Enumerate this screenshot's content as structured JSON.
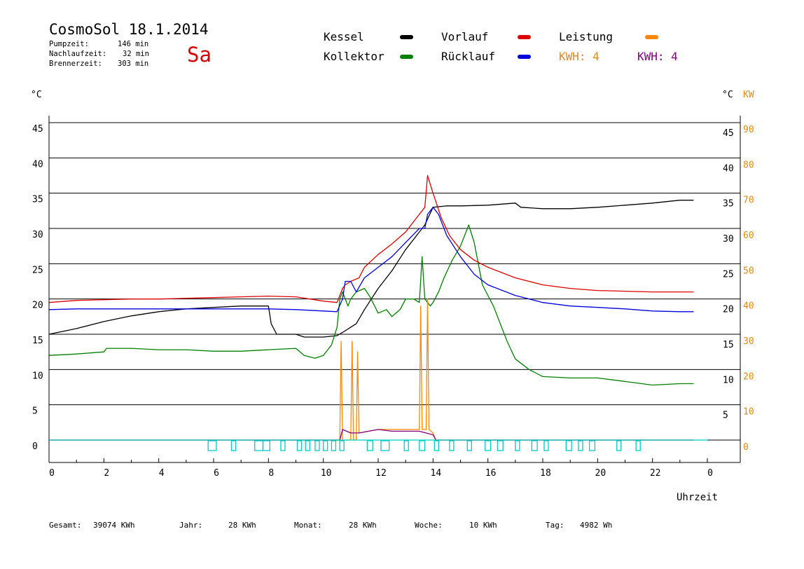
{
  "header": {
    "title": "CosmoSol 18.1.2014",
    "day": "Sa",
    "pumpzeit_label": "Pumpzeit:",
    "pumpzeit_value": "146 min",
    "nachlauf_label": "Nachlaufzeit:",
    "nachlauf_value": "32 min",
    "brenner_label": "Brennerzeit:",
    "brenner_value": "303 min"
  },
  "legend": {
    "kessel": "Kessel",
    "kollektor": "Kollektor",
    "vorlauf": "Vorlauf",
    "ruecklauf": "Rücklauf",
    "leistung": "Leistung",
    "kwh1": "KWH: 4",
    "kwh2": "KWH: 4"
  },
  "axes": {
    "left_unit": "°C",
    "right_unit_c": "°C",
    "right_unit_kw": "KW",
    "x_unit": "Uhrzeit"
  },
  "totals": [
    {
      "label": "Gesamt:",
      "value": "39074 KWh"
    },
    {
      "label": "Jahr:",
      "value": "28 KWh"
    },
    {
      "label": "Monat:",
      "value": "28 KWh"
    },
    {
      "label": "Woche:",
      "value": "10 KWh"
    },
    {
      "label": "Tag:",
      "value": "4982 Wh"
    }
  ],
  "colors": {
    "kessel": "#000000",
    "kollektor": "#008000",
    "vorlauf": "#dd0000",
    "ruecklauf": "#0000dd",
    "leistung": "#ff8800",
    "kwh2": "#800080",
    "pump": "#00cccc",
    "kw_axis": "#e08a1e"
  },
  "chart_data": {
    "type": "line",
    "x_unit": "Uhrzeit",
    "xlim": [
      0,
      24
    ],
    "ylim": [
      0,
      45
    ],
    "y2lim": [
      0,
      90
    ],
    "grid": true,
    "x_ticks": [
      "0",
      "2",
      "4",
      "6",
      "8",
      "10",
      "12",
      "14",
      "16",
      "18",
      "20",
      "22",
      "0"
    ],
    "y_ticks": [
      "0",
      "5",
      "10",
      "15",
      "20",
      "25",
      "30",
      "35",
      "40",
      "45"
    ],
    "y_ticks_right": [
      "5",
      "10",
      "15",
      "20",
      "25",
      "30",
      "35",
      "40",
      "45"
    ],
    "y2_ticks": [
      "0",
      "10",
      "20",
      "30",
      "40",
      "50",
      "60",
      "70",
      "80",
      "90"
    ],
    "series": [
      {
        "name": "Kessel",
        "color": "#000000",
        "points": [
          [
            0,
            15
          ],
          [
            1,
            15.8
          ],
          [
            2,
            16.8
          ],
          [
            3,
            17.6
          ],
          [
            4,
            18.2
          ],
          [
            5,
            18.6
          ],
          [
            6,
            18.8
          ],
          [
            7,
            19
          ],
          [
            8,
            19
          ],
          [
            8.1,
            16.5
          ],
          [
            8.3,
            15
          ],
          [
            9,
            15
          ],
          [
            9.3,
            14.6
          ],
          [
            10,
            14.6
          ],
          [
            10.5,
            14.8
          ],
          [
            10.8,
            15.5
          ],
          [
            11,
            16
          ],
          [
            11.2,
            16.5
          ],
          [
            11.5,
            18.5
          ],
          [
            12,
            21.5
          ],
          [
            12.5,
            24
          ],
          [
            13,
            27
          ],
          [
            13.5,
            29.5
          ],
          [
            13.7,
            30.5
          ],
          [
            14,
            33
          ],
          [
            14.5,
            33.2
          ],
          [
            15,
            33.2
          ],
          [
            16,
            33.3
          ],
          [
            17,
            33.6
          ],
          [
            17.2,
            33
          ],
          [
            18,
            32.8
          ],
          [
            19,
            32.8
          ],
          [
            20,
            33
          ],
          [
            21,
            33.3
          ],
          [
            22,
            33.6
          ],
          [
            23,
            34
          ],
          [
            23.5,
            34
          ]
        ]
      },
      {
        "name": "Kollektor",
        "color": "#008000",
        "points": [
          [
            0,
            12
          ],
          [
            1,
            12.2
          ],
          [
            2,
            12.5
          ],
          [
            2.1,
            13
          ],
          [
            3,
            13
          ],
          [
            4,
            12.8
          ],
          [
            5,
            12.8
          ],
          [
            6,
            12.6
          ],
          [
            7,
            12.6
          ],
          [
            8,
            12.8
          ],
          [
            9,
            13
          ],
          [
            9.3,
            12
          ],
          [
            9.7,
            11.6
          ],
          [
            10,
            12
          ],
          [
            10.3,
            13.5
          ],
          [
            10.5,
            16
          ],
          [
            10.6,
            20
          ],
          [
            10.7,
            21
          ],
          [
            10.9,
            19
          ],
          [
            11,
            20
          ],
          [
            11.2,
            21
          ],
          [
            11.5,
            21.5
          ],
          [
            11.7,
            20.3
          ],
          [
            12,
            18
          ],
          [
            12.3,
            18.5
          ],
          [
            12.5,
            17.5
          ],
          [
            12.8,
            18.5
          ],
          [
            13,
            20
          ],
          [
            13.3,
            20
          ],
          [
            13.5,
            19.5
          ],
          [
            13.6,
            26
          ],
          [
            13.7,
            20
          ],
          [
            13.9,
            19
          ],
          [
            14,
            19.5
          ],
          [
            14.2,
            21
          ],
          [
            14.4,
            23
          ],
          [
            14.7,
            25.5
          ],
          [
            15,
            27.5
          ],
          [
            15.3,
            30.5
          ],
          [
            15.5,
            28
          ],
          [
            15.8,
            22
          ],
          [
            16.2,
            19
          ],
          [
            16.7,
            14
          ],
          [
            17,
            11.5
          ],
          [
            17.5,
            10
          ],
          [
            18,
            9
          ],
          [
            19,
            8.8
          ],
          [
            20,
            8.8
          ],
          [
            21,
            8.3
          ],
          [
            22,
            7.8
          ],
          [
            23,
            8
          ],
          [
            23.5,
            8
          ]
        ]
      },
      {
        "name": "Vorlauf",
        "color": "#dd0000",
        "points": [
          [
            0,
            19.5
          ],
          [
            1,
            19.8
          ],
          [
            2,
            19.9
          ],
          [
            3,
            20
          ],
          [
            4,
            20
          ],
          [
            5,
            20.1
          ],
          [
            6,
            20.2
          ],
          [
            7,
            20.3
          ],
          [
            8,
            20.4
          ],
          [
            9,
            20.3
          ],
          [
            10,
            19.7
          ],
          [
            10.5,
            19.5
          ],
          [
            10.7,
            21.5
          ],
          [
            10.8,
            22
          ],
          [
            11,
            22.5
          ],
          [
            11.3,
            23
          ],
          [
            11.5,
            24.5
          ],
          [
            12,
            26.3
          ],
          [
            12.5,
            27.8
          ],
          [
            13,
            29.5
          ],
          [
            13.4,
            31.5
          ],
          [
            13.7,
            33
          ],
          [
            13.8,
            37.5
          ],
          [
            14,
            35
          ],
          [
            14.3,
            31.5
          ],
          [
            14.6,
            29
          ],
          [
            15,
            27
          ],
          [
            15.5,
            25.5
          ],
          [
            16,
            24.5
          ],
          [
            17,
            23
          ],
          [
            18,
            22
          ],
          [
            19,
            21.5
          ],
          [
            20,
            21.2
          ],
          [
            21,
            21.1
          ],
          [
            22,
            21
          ],
          [
            23,
            21
          ],
          [
            23.5,
            21
          ]
        ]
      },
      {
        "name": "Rücklauf",
        "color": "#0000dd",
        "points": [
          [
            0,
            18.5
          ],
          [
            1,
            18.6
          ],
          [
            2,
            18.6
          ],
          [
            3,
            18.6
          ],
          [
            4,
            18.6
          ],
          [
            5,
            18.6
          ],
          [
            6,
            18.6
          ],
          [
            7,
            18.6
          ],
          [
            8,
            18.6
          ],
          [
            9,
            18.5
          ],
          [
            10,
            18.3
          ],
          [
            10.5,
            18.2
          ],
          [
            10.7,
            20
          ],
          [
            10.8,
            22.5
          ],
          [
            11,
            22.5
          ],
          [
            11.2,
            21
          ],
          [
            11.5,
            23
          ],
          [
            12,
            24.5
          ],
          [
            12.5,
            26
          ],
          [
            13,
            28
          ],
          [
            13.5,
            30
          ],
          [
            13.7,
            30
          ],
          [
            13.8,
            32
          ],
          [
            14,
            33
          ],
          [
            14.2,
            32
          ],
          [
            14.5,
            29
          ],
          [
            15,
            26
          ],
          [
            15.5,
            23.5
          ],
          [
            16,
            22
          ],
          [
            17,
            20.5
          ],
          [
            18,
            19.5
          ],
          [
            19,
            19
          ],
          [
            20,
            18.8
          ],
          [
            21,
            18.6
          ],
          [
            22,
            18.3
          ],
          [
            23,
            18.2
          ],
          [
            23.5,
            18.2
          ]
        ]
      },
      {
        "name": "Leistung",
        "color": "#ff8800",
        "axis": "kw",
        "points": [
          [
            0,
            0
          ],
          [
            10.6,
            0
          ],
          [
            10.65,
            28
          ],
          [
            10.7,
            0
          ],
          [
            11,
            0
          ],
          [
            11.05,
            28
          ],
          [
            11.1,
            0
          ],
          [
            11.2,
            0
          ],
          [
            11.25,
            25
          ],
          [
            11.3,
            2
          ],
          [
            12,
            3
          ],
          [
            13,
            3
          ],
          [
            13.5,
            3
          ],
          [
            13.55,
            38
          ],
          [
            13.6,
            3
          ],
          [
            13.75,
            3
          ],
          [
            13.8,
            40
          ],
          [
            13.85,
            3
          ],
          [
            14,
            2
          ],
          [
            14.1,
            0
          ],
          [
            23.5,
            0
          ]
        ]
      },
      {
        "name": "KWH: 4",
        "color": "#800080",
        "axis": "kw",
        "points": [
          [
            0,
            0
          ],
          [
            10.6,
            0
          ],
          [
            10.7,
            3
          ],
          [
            11,
            2
          ],
          [
            11.3,
            2
          ],
          [
            12,
            3
          ],
          [
            12.5,
            2.5
          ],
          [
            13,
            2.5
          ],
          [
            13.5,
            2.5
          ],
          [
            14,
            1.5
          ],
          [
            14.1,
            0
          ],
          [
            23.5,
            0
          ]
        ]
      }
    ],
    "pump_intervals": [
      [
        5.8,
        6.1
      ],
      [
        6.65,
        6.75
      ],
      [
        7.5,
        7.8
      ],
      [
        7.8,
        8.05
      ],
      [
        8.45,
        8.55
      ],
      [
        9.05,
        9.2
      ],
      [
        9.35,
        9.5
      ],
      [
        9.7,
        9.8
      ],
      [
        10,
        10.1
      ],
      [
        10.3,
        10.4
      ],
      [
        10.6,
        10.7
      ],
      [
        11.6,
        11.8
      ],
      [
        12.1,
        12.4
      ],
      [
        12.95,
        13.1
      ],
      [
        13.5,
        13.7
      ],
      [
        14.05,
        14.15
      ],
      [
        14.6,
        14.7
      ],
      [
        15.25,
        15.35
      ],
      [
        15.9,
        16.1
      ],
      [
        16.35,
        16.55
      ],
      [
        17,
        17.1
      ],
      [
        17.6,
        17.8
      ],
      [
        18.05,
        18.15
      ],
      [
        18.85,
        19.05
      ],
      [
        19.3,
        19.45
      ],
      [
        19.7,
        19.9
      ],
      [
        20.7,
        20.85
      ],
      [
        21.4,
        21.5
      ]
    ]
  }
}
